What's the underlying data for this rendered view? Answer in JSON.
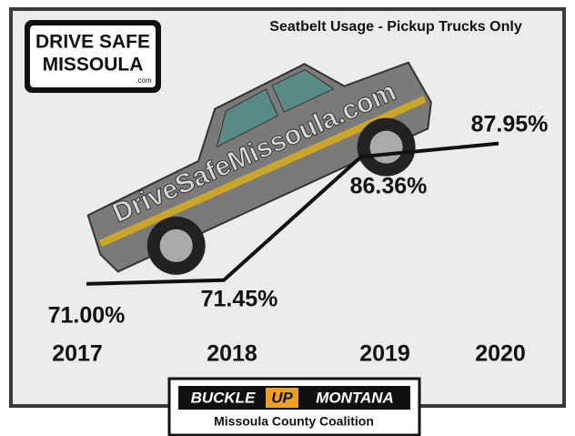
{
  "logo": {
    "line1": "DRIVE SAFE",
    "line2": "MISSOULA",
    "suffix": ".com"
  },
  "chart_data": {
    "type": "line",
    "title": "Seatbelt Usage - Pickup Trucks Only",
    "categories": [
      "2017",
      "2018",
      "2019",
      "2020"
    ],
    "values": [
      71.0,
      71.45,
      86.36,
      87.95
    ],
    "value_labels": [
      "71.00%",
      "71.45%",
      "86.36%",
      "87.95%"
    ],
    "color": "#111111",
    "ylim": [
      70,
      90
    ]
  },
  "truck_text": "DriveSafeMissoula.com",
  "footer": {
    "buckle": "BUCKLE",
    "up": "UP",
    "montana": "MONTANA",
    "coalition": "Missoula County Coalition"
  }
}
